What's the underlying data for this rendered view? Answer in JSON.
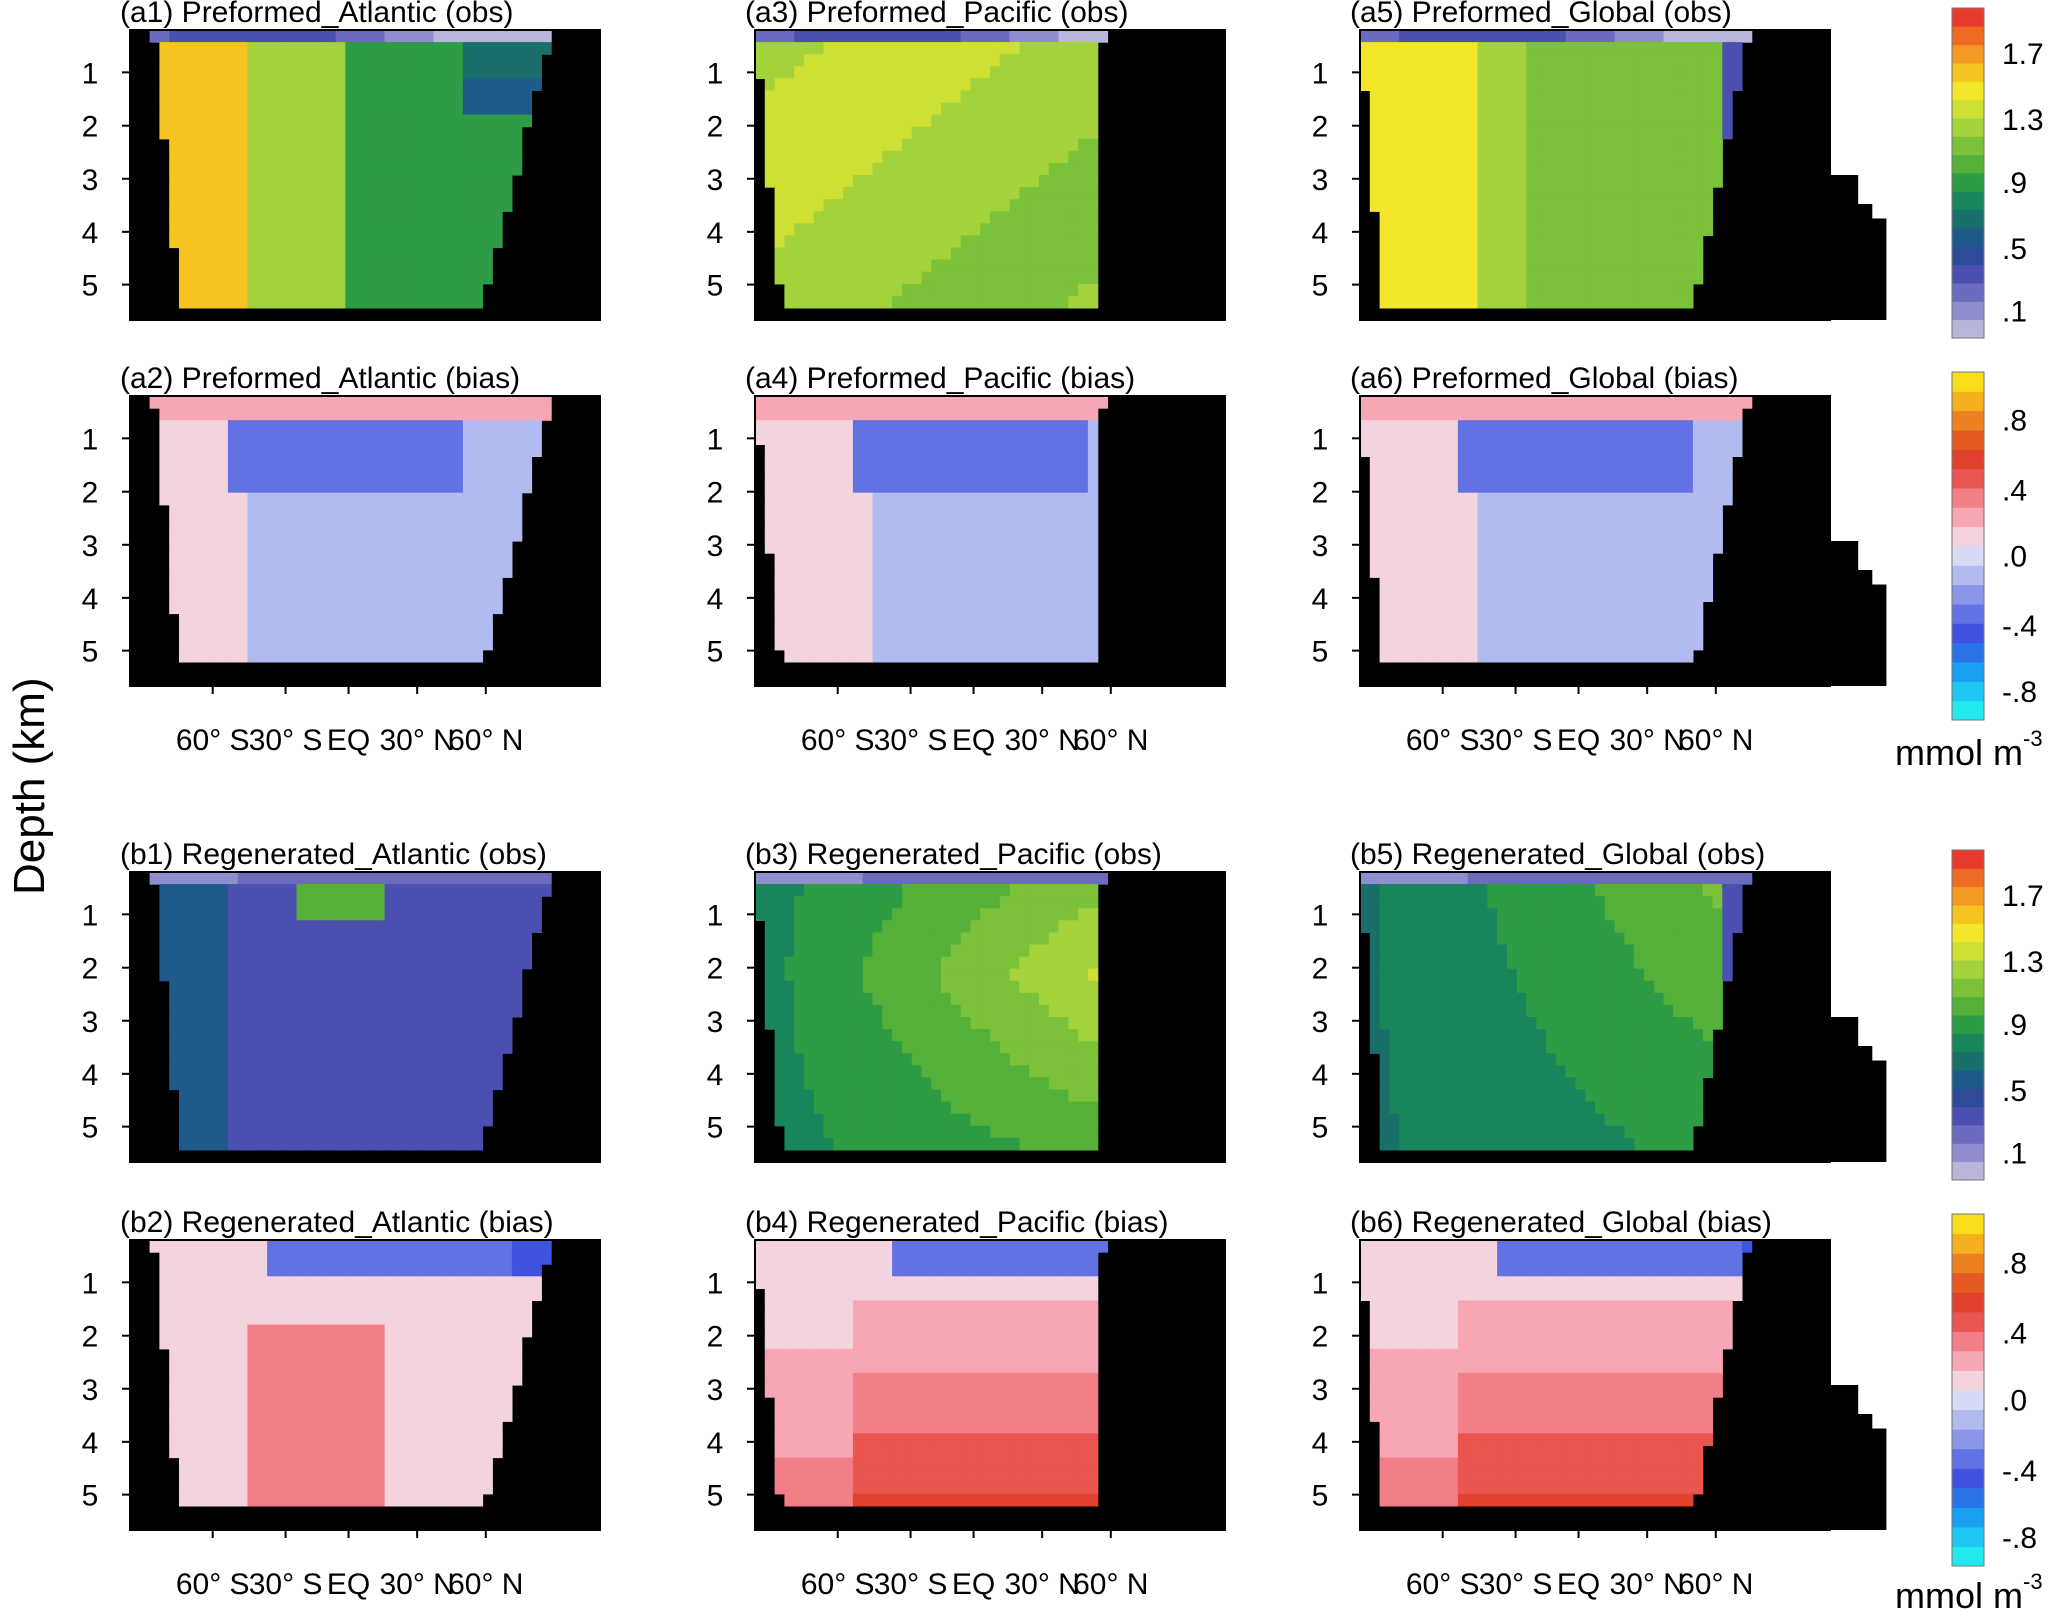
{
  "figure": {
    "ylabel": "Depth (km)",
    "unit_main": "mmol m",
    "unit_sup": "-3"
  },
  "chart_data": [
    {
      "type": "heatmap",
      "title": "(a1) Preformed_Atlantic (obs)",
      "kind": "obs",
      "basin": "atlantic",
      "field": "pre",
      "x_ticks": [
        "60° S",
        "30° S",
        "EQ",
        "30° N",
        "60° N"
      ],
      "y_ticks": [
        "1",
        "2",
        "3",
        "4",
        "5"
      ],
      "ylabel": "Depth (km)"
    },
    {
      "type": "heatmap",
      "title": "(a2) Preformed_Atlantic (bias)",
      "kind": "bias",
      "basin": "atlantic",
      "field": "pre",
      "x_ticks": [
        "60° S",
        "30° S",
        "EQ",
        "30° N",
        "60° N"
      ],
      "y_ticks": [
        "1",
        "2",
        "3",
        "4",
        "5"
      ],
      "ylabel": "Depth (km)"
    },
    {
      "type": "heatmap",
      "title": "(a3) Preformed_Pacific (obs)",
      "kind": "obs",
      "basin": "pacific",
      "field": "pre",
      "x_ticks": [
        "60° S",
        "30° S",
        "EQ",
        "30° N",
        "60° N"
      ],
      "y_ticks": [
        "1",
        "2",
        "3",
        "4",
        "5"
      ]
    },
    {
      "type": "heatmap",
      "title": "(a4) Preformed_Pacific (bias)",
      "kind": "bias",
      "basin": "pacific",
      "field": "pre",
      "x_ticks": [
        "60° S",
        "30° S",
        "EQ",
        "30° N",
        "60° N"
      ],
      "y_ticks": [
        "1",
        "2",
        "3",
        "4",
        "5"
      ]
    },
    {
      "type": "heatmap",
      "title": "(a5) Preformed_Global (obs)",
      "kind": "obs",
      "basin": "global",
      "field": "pre",
      "x_ticks": [
        "60° S",
        "30° S",
        "EQ",
        "30° N",
        "60° N"
      ],
      "y_ticks": [
        "1",
        "2",
        "3",
        "4",
        "5"
      ]
    },
    {
      "type": "heatmap",
      "title": "(a6) Preformed_Global (bias)",
      "kind": "bias",
      "basin": "global",
      "field": "pre",
      "x_ticks": [
        "60° S",
        "30° S",
        "EQ",
        "30° N",
        "60° N"
      ],
      "y_ticks": [
        "1",
        "2",
        "3",
        "4",
        "5"
      ]
    },
    {
      "type": "heatmap",
      "title": "(b1)  Regenerated_Atlantic (obs)",
      "kind": "obs",
      "basin": "atlantic",
      "field": "reg",
      "x_ticks": [
        "60° S",
        "30° S",
        "EQ",
        "30° N",
        "60° N"
      ],
      "y_ticks": [
        "1",
        "2",
        "3",
        "4",
        "5"
      ]
    },
    {
      "type": "heatmap",
      "title": "(b2) Regenerated_Atlantic (bias)",
      "kind": "bias",
      "basin": "atlantic",
      "field": "reg",
      "x_ticks": [
        "60° S",
        "30° S",
        "EQ",
        "30° N",
        "60° N"
      ],
      "y_ticks": [
        "1",
        "2",
        "3",
        "4",
        "5"
      ]
    },
    {
      "type": "heatmap",
      "title": "(b3) Regenerated_Pacific (obs)",
      "kind": "obs",
      "basin": "pacific",
      "field": "reg",
      "x_ticks": [
        "60° S",
        "30° S",
        "EQ",
        "30° N",
        "60° N"
      ],
      "y_ticks": [
        "1",
        "2",
        "3",
        "4",
        "5"
      ]
    },
    {
      "type": "heatmap",
      "title": "(b4) Regenerated_Pacific (bias)",
      "kind": "bias",
      "basin": "pacific",
      "field": "reg",
      "x_ticks": [
        "60° S",
        "30° S",
        "EQ",
        "30° N",
        "60° N"
      ],
      "y_ticks": [
        "1",
        "2",
        "3",
        "4",
        "5"
      ]
    },
    {
      "type": "heatmap",
      "title": "(b5) Regenerated_Global (obs)",
      "kind": "obs",
      "basin": "global",
      "field": "reg",
      "x_ticks": [
        "60° S",
        "30° S",
        "EQ",
        "30° N",
        "60° N"
      ],
      "y_ticks": [
        "1",
        "2",
        "3",
        "4",
        "5"
      ]
    },
    {
      "type": "heatmap",
      "title": "(b6) Regenerated_Global (bias)",
      "kind": "bias",
      "basin": "global",
      "field": "reg",
      "x_ticks": [
        "60° S",
        "30° S",
        "EQ",
        "30° N",
        "60° N"
      ],
      "y_ticks": [
        "1",
        "2",
        "3",
        "4",
        "5"
      ]
    }
  ],
  "colorbars": {
    "obs": {
      "labels": [
        "1.7",
        "1.3",
        ".9",
        ".5",
        ".1"
      ],
      "colors": [
        "#b9b6db",
        "#8f8fcf",
        "#6b6cc0",
        "#4a4fb0",
        "#2f4c9a",
        "#1f5a8a",
        "#1a6f6a",
        "#18855a",
        "#2e9b45",
        "#55b03a",
        "#7cc13a",
        "#a4d23b",
        "#cfe035",
        "#f2e52a",
        "#f6c320",
        "#f39a22",
        "#ee6b25",
        "#e83a2a"
      ]
    },
    "bias": {
      "labels": [
        ".8",
        ".4",
        ".0",
        "-.4",
        "-.8"
      ],
      "colors": [
        "#22e8f0",
        "#1ec8f2",
        "#1aa0f0",
        "#2a72e8",
        "#3f52e0",
        "#6272e2",
        "#8b96e8",
        "#b2bbf0",
        "#d5daf5",
        "#f3d3de",
        "#f7a7b3",
        "#f27e87",
        "#ea5550",
        "#e2412e",
        "#e45a22",
        "#ec8022",
        "#f4b01f",
        "#f8de18"
      ]
    }
  }
}
